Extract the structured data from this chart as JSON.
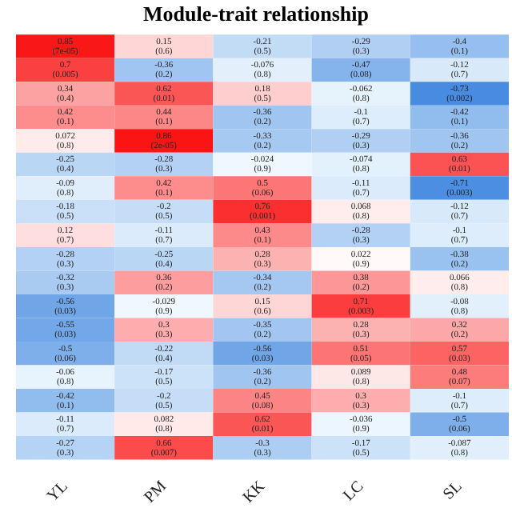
{
  "chart_data": {
    "type": "heatmap",
    "title": "Module-trait relationship",
    "categories": [
      "YL",
      "PM",
      "KK",
      "LC",
      "SL"
    ],
    "y_categories": [
      null,
      null,
      null,
      null,
      null,
      null,
      null,
      null,
      null,
      null,
      null,
      null,
      null,
      null,
      null,
      null,
      null,
      null
    ],
    "tick_labels": "x",
    "data_labels": true,
    "cells": [
      [
        0.85,
        0.15,
        -0.21,
        -0.29,
        -0.4
      ],
      [
        0.7,
        -0.36,
        -0.076,
        -0.47,
        -0.12
      ],
      [
        0.34,
        0.62,
        0.18,
        -0.062,
        -0.73
      ],
      [
        0.42,
        0.44,
        -0.36,
        -0.1,
        -0.42
      ],
      [
        0.072,
        0.86,
        -0.33,
        -0.29,
        -0.36
      ],
      [
        -0.25,
        -0.28,
        -0.024,
        -0.074,
        0.63
      ],
      [
        -0.09,
        0.42,
        0.5,
        -0.11,
        -0.71
      ],
      [
        -0.18,
        -0.2,
        0.76,
        0.068,
        -0.12
      ],
      [
        0.12,
        -0.11,
        0.43,
        -0.28,
        -0.1
      ],
      [
        -0.28,
        -0.25,
        0.28,
        0.022,
        -0.38
      ],
      [
        -0.32,
        0.36,
        -0.34,
        0.38,
        0.066
      ],
      [
        -0.56,
        -0.029,
        0.15,
        0.71,
        -0.08
      ],
      [
        -0.55,
        0.3,
        -0.35,
        0.28,
        0.32
      ],
      [
        -0.5,
        -0.22,
        -0.56,
        0.51,
        0.57
      ],
      [
        -0.06,
        -0.17,
        -0.36,
        0.089,
        0.48
      ],
      [
        -0.42,
        -0.2,
        0.45,
        0.3,
        -0.1
      ],
      [
        -0.11,
        0.082,
        0.62,
        -0.036,
        -0.5
      ],
      [
        -0.27,
        0.66,
        -0.3,
        -0.17,
        -0.087
      ]
    ],
    "annotations": [
      "(7e-05)",
      "(0.6)",
      "(0.5)",
      "(0.3)",
      "(0.1)",
      "(0.005)",
      "(0.2)",
      "(0.8)",
      "(0.08)",
      "(0.7)",
      "(0.4)",
      "(0.01)",
      "(0.5)",
      "(0.8)",
      "(0.002)",
      "(0.1)",
      "(0.1)",
      "(0.2)",
      "(0.7)",
      "(0.1)",
      "(0.8)",
      "(2e-05)",
      "(0.2)",
      "(0.3)",
      "(0.2)",
      "(0.4)",
      "(0.3)",
      "(0.9)",
      "(0.8)",
      "(0.01)",
      "(0.8)",
      "(0.1)",
      "(0.06)",
      "(0.7)",
      "(0.003)",
      "(0.5)",
      "(0.5)",
      "(0.001)",
      "(0.8)",
      "(0.7)",
      "(0.7)",
      "(0.7)",
      "(0.1)",
      "(0.3)",
      "(0.7)",
      "(0.3)",
      "(0.4)",
      "(0.3)",
      "(0.9)",
      "(0.2)",
      "(0.3)",
      "(0.2)",
      "(0.2)",
      "(0.2)",
      "(0.8)",
      "(0.03)",
      "(0.9)",
      "(0.6)",
      "(0.003)",
      "(0.8)",
      "(0.03)",
      "(0.3)",
      "(0.2)",
      "(0.3)",
      "(0.2)",
      "(0.06)",
      "(0.4)",
      "(0.03)",
      "(0.05)",
      "(0.03)",
      "(0.8)",
      "(0.5)",
      "(0.2)",
      "(0.8)",
      "(0.07)",
      "(0.1)",
      "(0.5)",
      "(0.08)",
      "(0.3)",
      "(0.7)",
      "(0.7)",
      "(0.8)",
      "(0.01)",
      "(0.9)",
      "(0.06)",
      "(0.3)",
      "(0.007)",
      "(0.3)",
      "(0.5)",
      "(0.8)"
    ]
  }
}
